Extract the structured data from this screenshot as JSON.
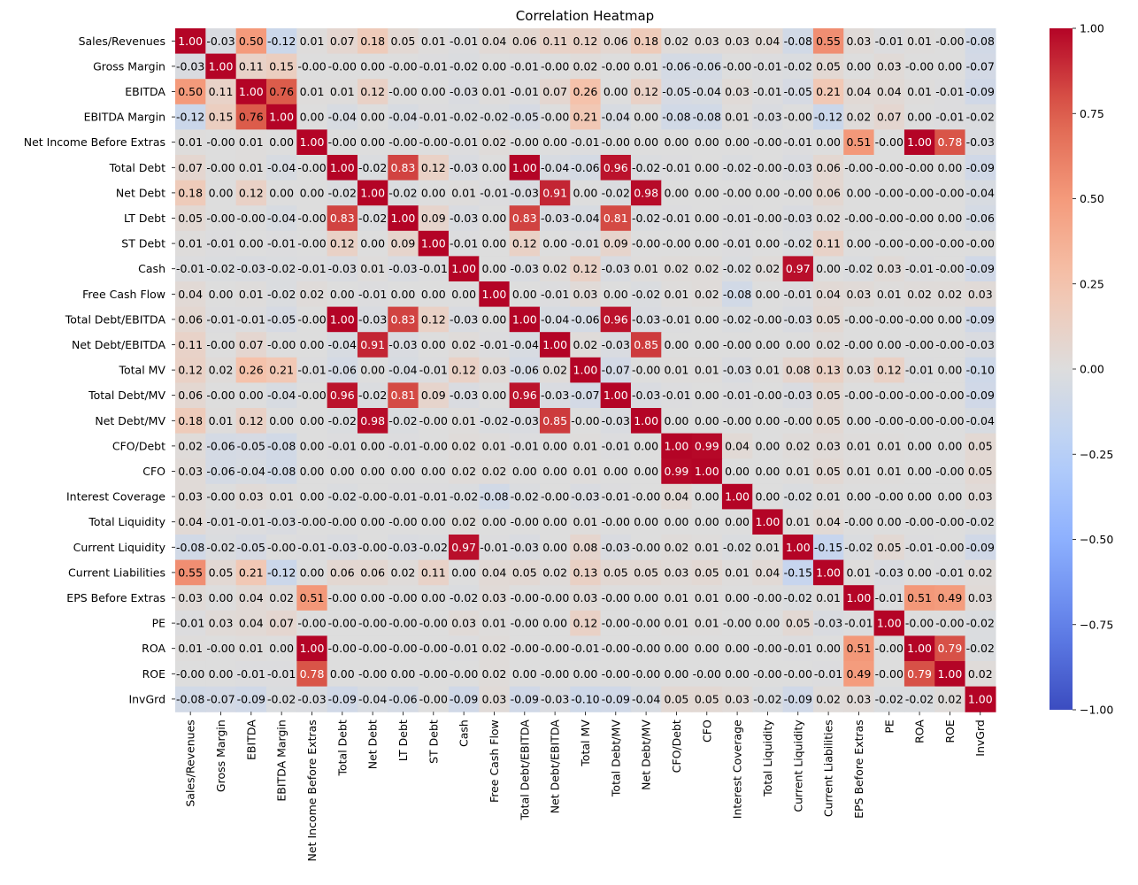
{
  "chart_data": {
    "type": "heatmap",
    "title": "Correlation Heatmap",
    "colormap": "coolwarm",
    "vmin": -1,
    "vmax": 1,
    "colorbar_ticks": [
      1.0,
      0.75,
      0.5,
      0.25,
      0.0,
      -0.25,
      -0.5,
      -0.75,
      -1.0
    ],
    "colorbar_tick_labels": [
      "1.00",
      "0.75",
      "0.50",
      "0.25",
      "0.00",
      "−0.25",
      "−0.50",
      "−0.75",
      "−1.00"
    ],
    "labels": [
      "Sales/Revenues",
      "Gross Margin",
      "EBITDA",
      "EBITDA Margin",
      "Net Income Before Extras",
      "Total Debt",
      "Net Debt",
      "LT Debt",
      "ST Debt",
      "Cash",
      "Free Cash Flow",
      "Total Debt/EBITDA",
      "Net Debt/EBITDA",
      "Total MV",
      "Total Debt/MV",
      "Net Debt/MV",
      "CFO/Debt",
      "CFO",
      "Interest Coverage",
      "Total Liquidity",
      "Current Liquidity",
      "Current Liabilities",
      "EPS Before Extras",
      "PE",
      "ROA",
      "ROE",
      "InvGrd"
    ],
    "matrix": [
      [
        "1.00",
        "-0.03",
        "0.50",
        "-0.12",
        "0.01",
        "0.07",
        "0.18",
        "0.05",
        "0.01",
        "-0.01",
        "0.04",
        "0.06",
        "0.11",
        "0.12",
        "0.06",
        "0.18",
        "0.02",
        "0.03",
        "0.03",
        "0.04",
        "-0.08",
        "0.55",
        "0.03",
        "-0.01",
        "0.01",
        "-0.00",
        "-0.08"
      ],
      [
        "-0.03",
        "1.00",
        "0.11",
        "0.15",
        "-0.00",
        "-0.00",
        "0.00",
        "-0.00",
        "-0.01",
        "-0.02",
        "0.00",
        "-0.01",
        "-0.00",
        "0.02",
        "-0.00",
        "0.01",
        "-0.06",
        "-0.06",
        "-0.00",
        "-0.01",
        "-0.02",
        "0.05",
        "0.00",
        "0.03",
        "-0.00",
        "0.00",
        "-0.07"
      ],
      [
        "0.50",
        "0.11",
        "1.00",
        "0.76",
        "0.01",
        "0.01",
        "0.12",
        "-0.00",
        "0.00",
        "-0.03",
        "0.01",
        "-0.01",
        "0.07",
        "0.26",
        "0.00",
        "0.12",
        "-0.05",
        "-0.04",
        "0.03",
        "-0.01",
        "-0.05",
        "0.21",
        "0.04",
        "0.04",
        "0.01",
        "-0.01",
        "-0.09"
      ],
      [
        "-0.12",
        "0.15",
        "0.76",
        "1.00",
        "0.00",
        "-0.04",
        "0.00",
        "-0.04",
        "-0.01",
        "-0.02",
        "-0.02",
        "-0.05",
        "-0.00",
        "0.21",
        "-0.04",
        "0.00",
        "-0.08",
        "-0.08",
        "0.01",
        "-0.03",
        "-0.00",
        "-0.12",
        "0.02",
        "0.07",
        "0.00",
        "-0.01",
        "-0.02"
      ],
      [
        "0.01",
        "-0.00",
        "0.01",
        "0.00",
        "1.00",
        "-0.00",
        "0.00",
        "-0.00",
        "-0.00",
        "-0.01",
        "0.02",
        "-0.00",
        "0.00",
        "-0.01",
        "-0.00",
        "0.00",
        "0.00",
        "0.00",
        "0.00",
        "-0.00",
        "-0.01",
        "0.00",
        "0.51",
        "-0.00",
        "1.00",
        "0.78",
        "-0.03"
      ],
      [
        "0.07",
        "-0.00",
        "0.01",
        "-0.04",
        "-0.00",
        "1.00",
        "-0.02",
        "0.83",
        "0.12",
        "-0.03",
        "0.00",
        "1.00",
        "-0.04",
        "-0.06",
        "0.96",
        "-0.02",
        "-0.01",
        "0.00",
        "-0.02",
        "-0.00",
        "-0.03",
        "0.06",
        "-0.00",
        "-0.00",
        "-0.00",
        "0.00",
        "-0.09"
      ],
      [
        "0.18",
        "0.00",
        "0.12",
        "0.00",
        "0.00",
        "-0.02",
        "1.00",
        "-0.02",
        "0.00",
        "0.01",
        "-0.01",
        "-0.03",
        "0.91",
        "0.00",
        "-0.02",
        "0.98",
        "0.00",
        "0.00",
        "-0.00",
        "0.00",
        "-0.00",
        "0.06",
        "0.00",
        "-0.00",
        "-0.00",
        "-0.00",
        "-0.04"
      ],
      [
        "0.05",
        "-0.00",
        "-0.00",
        "-0.04",
        "-0.00",
        "0.83",
        "-0.02",
        "1.00",
        "0.09",
        "-0.03",
        "0.00",
        "0.83",
        "-0.03",
        "-0.04",
        "0.81",
        "-0.02",
        "-0.01",
        "0.00",
        "-0.01",
        "-0.00",
        "-0.03",
        "0.02",
        "-0.00",
        "-0.00",
        "-0.00",
        "0.00",
        "-0.06"
      ],
      [
        "0.01",
        "-0.01",
        "0.00",
        "-0.01",
        "-0.00",
        "0.12",
        "0.00",
        "0.09",
        "1.00",
        "-0.01",
        "0.00",
        "0.12",
        "0.00",
        "-0.01",
        "0.09",
        "-0.00",
        "-0.00",
        "0.00",
        "-0.01",
        "0.00",
        "-0.02",
        "0.11",
        "0.00",
        "-0.00",
        "-0.00",
        "-0.00",
        "-0.00"
      ],
      [
        "-0.01",
        "-0.02",
        "-0.03",
        "-0.02",
        "-0.01",
        "-0.03",
        "0.01",
        "-0.03",
        "-0.01",
        "1.00",
        "0.00",
        "-0.03",
        "0.02",
        "0.12",
        "-0.03",
        "0.01",
        "0.02",
        "0.02",
        "-0.02",
        "0.02",
        "0.97",
        "0.00",
        "-0.02",
        "0.03",
        "-0.01",
        "-0.00",
        "-0.09"
      ],
      [
        "0.04",
        "0.00",
        "0.01",
        "-0.02",
        "0.02",
        "0.00",
        "-0.01",
        "0.00",
        "0.00",
        "0.00",
        "1.00",
        "0.00",
        "-0.01",
        "0.03",
        "0.00",
        "-0.02",
        "0.01",
        "0.02",
        "-0.08",
        "0.00",
        "-0.01",
        "0.04",
        "0.03",
        "0.01",
        "0.02",
        "0.02",
        "0.03"
      ],
      [
        "0.06",
        "-0.01",
        "-0.01",
        "-0.05",
        "-0.00",
        "1.00",
        "-0.03",
        "0.83",
        "0.12",
        "-0.03",
        "0.00",
        "1.00",
        "-0.04",
        "-0.06",
        "0.96",
        "-0.03",
        "-0.01",
        "0.00",
        "-0.02",
        "-0.00",
        "-0.03",
        "0.05",
        "-0.00",
        "-0.00",
        "-0.00",
        "0.00",
        "-0.09"
      ],
      [
        "0.11",
        "-0.00",
        "0.07",
        "-0.00",
        "0.00",
        "-0.04",
        "0.91",
        "-0.03",
        "0.00",
        "0.02",
        "-0.01",
        "-0.04",
        "1.00",
        "0.02",
        "-0.03",
        "0.85",
        "0.00",
        "0.00",
        "-0.00",
        "0.00",
        "0.00",
        "0.02",
        "-0.00",
        "0.00",
        "-0.00",
        "-0.00",
        "-0.03"
      ],
      [
        "0.12",
        "0.02",
        "0.26",
        "0.21",
        "-0.01",
        "-0.06",
        "0.00",
        "-0.04",
        "-0.01",
        "0.12",
        "0.03",
        "-0.06",
        "0.02",
        "1.00",
        "-0.07",
        "-0.00",
        "0.01",
        "0.01",
        "-0.03",
        "0.01",
        "0.08",
        "0.13",
        "0.03",
        "0.12",
        "-0.01",
        "0.00",
        "-0.10"
      ],
      [
        "0.06",
        "-0.00",
        "0.00",
        "-0.04",
        "-0.00",
        "0.96",
        "-0.02",
        "0.81",
        "0.09",
        "-0.03",
        "0.00",
        "0.96",
        "-0.03",
        "-0.07",
        "1.00",
        "-0.03",
        "-0.01",
        "0.00",
        "-0.01",
        "-0.00",
        "-0.03",
        "0.05",
        "-0.00",
        "-0.00",
        "-0.00",
        "-0.00",
        "-0.09"
      ],
      [
        "0.18",
        "0.01",
        "0.12",
        "0.00",
        "0.00",
        "-0.02",
        "0.98",
        "-0.02",
        "-0.00",
        "0.01",
        "-0.02",
        "-0.03",
        "0.85",
        "-0.00",
        "-0.03",
        "1.00",
        "0.00",
        "0.00",
        "-0.00",
        "0.00",
        "-0.00",
        "0.05",
        "0.00",
        "-0.00",
        "-0.00",
        "-0.00",
        "-0.04"
      ],
      [
        "0.02",
        "-0.06",
        "-0.05",
        "-0.08",
        "0.00",
        "-0.01",
        "0.00",
        "-0.01",
        "-0.00",
        "0.02",
        "0.01",
        "-0.01",
        "0.00",
        "0.01",
        "-0.01",
        "0.00",
        "1.00",
        "0.99",
        "0.04",
        "0.00",
        "0.02",
        "0.03",
        "0.01",
        "0.01",
        "0.00",
        "0.00",
        "0.05"
      ],
      [
        "0.03",
        "-0.06",
        "-0.04",
        "-0.08",
        "0.00",
        "0.00",
        "0.00",
        "0.00",
        "0.00",
        "0.02",
        "0.02",
        "0.00",
        "0.00",
        "0.01",
        "0.00",
        "0.00",
        "0.99",
        "1.00",
        "0.00",
        "0.00",
        "0.01",
        "0.05",
        "0.01",
        "0.01",
        "0.00",
        "-0.00",
        "0.05"
      ],
      [
        "0.03",
        "-0.00",
        "0.03",
        "0.01",
        "0.00",
        "-0.02",
        "-0.00",
        "-0.01",
        "-0.01",
        "-0.02",
        "-0.08",
        "-0.02",
        "-0.00",
        "-0.03",
        "-0.01",
        "-0.00",
        "0.04",
        "0.00",
        "1.00",
        "0.00",
        "-0.02",
        "0.01",
        "0.00",
        "-0.00",
        "0.00",
        "0.00",
        "0.03"
      ],
      [
        "0.04",
        "-0.01",
        "-0.01",
        "-0.03",
        "-0.00",
        "-0.00",
        "0.00",
        "-0.00",
        "0.00",
        "0.02",
        "0.00",
        "-0.00",
        "0.00",
        "0.01",
        "-0.00",
        "0.00",
        "0.00",
        "0.00",
        "0.00",
        "1.00",
        "0.01",
        "0.04",
        "-0.00",
        "0.00",
        "-0.00",
        "-0.00",
        "-0.02"
      ],
      [
        "-0.08",
        "-0.02",
        "-0.05",
        "-0.00",
        "-0.01",
        "-0.03",
        "-0.00",
        "-0.03",
        "-0.02",
        "0.97",
        "-0.01",
        "-0.03",
        "0.00",
        "0.08",
        "-0.03",
        "-0.00",
        "0.02",
        "0.01",
        "-0.02",
        "0.01",
        "1.00",
        "-0.15",
        "-0.02",
        "0.05",
        "-0.01",
        "-0.00",
        "-0.09"
      ],
      [
        "0.55",
        "0.05",
        "0.21",
        "-0.12",
        "0.00",
        "0.06",
        "0.06",
        "0.02",
        "0.11",
        "0.00",
        "0.04",
        "0.05",
        "0.02",
        "0.13",
        "0.05",
        "0.05",
        "0.03",
        "0.05",
        "0.01",
        "0.04",
        "-0.15",
        "1.00",
        "0.01",
        "-0.03",
        "0.00",
        "-0.01",
        "0.02"
      ],
      [
        "0.03",
        "0.00",
        "0.04",
        "0.02",
        "0.51",
        "-0.00",
        "0.00",
        "-0.00",
        "0.00",
        "-0.02",
        "0.03",
        "-0.00",
        "-0.00",
        "0.03",
        "-0.00",
        "0.00",
        "0.01",
        "0.01",
        "0.00",
        "-0.00",
        "-0.02",
        "0.01",
        "1.00",
        "-0.01",
        "0.51",
        "0.49",
        "0.03"
      ],
      [
        "-0.01",
        "0.03",
        "0.04",
        "0.07",
        "-0.00",
        "-0.00",
        "-0.00",
        "-0.00",
        "-0.00",
        "0.03",
        "0.01",
        "-0.00",
        "0.00",
        "0.12",
        "-0.00",
        "-0.00",
        "0.01",
        "0.01",
        "-0.00",
        "0.00",
        "0.05",
        "-0.03",
        "-0.01",
        "1.00",
        "-0.00",
        "-0.00",
        "-0.02"
      ],
      [
        "0.01",
        "-0.00",
        "0.01",
        "0.00",
        "1.00",
        "-0.00",
        "-0.00",
        "-0.00",
        "-0.00",
        "-0.01",
        "0.02",
        "-0.00",
        "-0.00",
        "-0.01",
        "-0.00",
        "-0.00",
        "0.00",
        "0.00",
        "0.00",
        "-0.00",
        "-0.01",
        "0.00",
        "0.51",
        "-0.00",
        "1.00",
        "0.79",
        "-0.02"
      ],
      [
        "-0.00",
        "0.00",
        "-0.01",
        "-0.01",
        "0.78",
        "0.00",
        "-0.00",
        "0.00",
        "-0.00",
        "-0.00",
        "0.02",
        "0.00",
        "-0.00",
        "0.00",
        "-0.00",
        "-0.00",
        "0.00",
        "-0.00",
        "0.00",
        "-0.00",
        "-0.00",
        "-0.01",
        "0.49",
        "-0.00",
        "0.79",
        "1.00",
        "0.02"
      ],
      [
        "-0.08",
        "-0.07",
        "-0.09",
        "-0.02",
        "-0.03",
        "-0.09",
        "-0.04",
        "-0.06",
        "-0.00",
        "-0.09",
        "0.03",
        "-0.09",
        "-0.03",
        "-0.10",
        "-0.09",
        "-0.04",
        "0.05",
        "0.05",
        "0.03",
        "-0.02",
        "-0.09",
        "0.02",
        "0.03",
        "-0.02",
        "-0.02",
        "0.02",
        "1.00"
      ]
    ]
  }
}
